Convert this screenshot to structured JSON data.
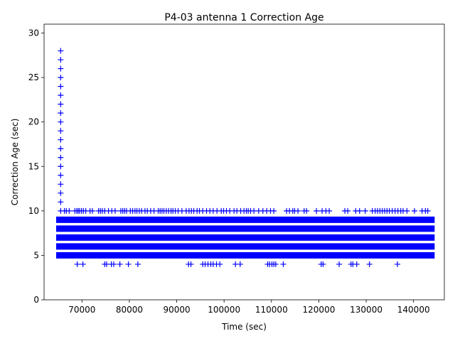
{
  "chart_data": {
    "type": "scatter",
    "title": "P4-03 antenna 1 Correction Age",
    "xlabel": "Time (sec)",
    "ylabel": "Correction Age (sec)",
    "xlim": [
      62000,
      146500
    ],
    "ylim": [
      0,
      31
    ],
    "x_ticks": [
      70000,
      80000,
      90000,
      100000,
      110000,
      120000,
      130000,
      140000
    ],
    "x_tick_labels": [
      "70000",
      "80000",
      "90000",
      "100000",
      "110000",
      "120000",
      "130000",
      "140000"
    ],
    "y_ticks": [
      0,
      5,
      10,
      15,
      20,
      25,
      30
    ],
    "y_tick_labels": [
      "0",
      "5",
      "10",
      "15",
      "20",
      "25",
      "30"
    ],
    "marker": "+",
    "color": "#0000ff",
    "grid": false,
    "dense_bands": {
      "x_range": [
        65000,
        144000
      ],
      "y_values": [
        5,
        6,
        7,
        8,
        9
      ]
    },
    "spike": {
      "x": 65500,
      "y_values": [
        11,
        12,
        13,
        14,
        15,
        16,
        17,
        18,
        19,
        20,
        21,
        22,
        23,
        24,
        25,
        26,
        27,
        28
      ]
    },
    "sparse_points_y10": [
      65500,
      66300,
      66700,
      67300,
      68500,
      68900,
      69200,
      69500,
      69900,
      70300,
      70800,
      71700,
      72200,
      73500,
      73900,
      74300,
      74800,
      75600,
      76300,
      77000,
      78200,
      78600,
      79000,
      79400,
      80200,
      80700,
      81200,
      81600,
      82100,
      82600,
      83300,
      83800,
      84500,
      85200,
      86100,
      86500,
      86900,
      87300,
      87800,
      88300,
      88800,
      89200,
      89700,
      90300,
      91100,
      92000,
      92600,
      93100,
      93600,
      94300,
      94800,
      95500,
      96300,
      97000,
      97700,
      98500,
      99400,
      99900,
      100500,
      101200,
      102100,
      102700,
      103500,
      104200,
      104700,
      105100,
      105600,
      106300,
      107300,
      108200,
      109000,
      109800,
      110500,
      113200,
      113800,
      114500,
      114900,
      115600,
      116900,
      117400,
      119500,
      120700,
      121500,
      122200,
      125500,
      126100,
      127800,
      128600,
      129800,
      131300,
      131900,
      132400,
      132900,
      133400,
      133900,
      134400,
      134900,
      135500,
      136100,
      136700,
      137300,
      137800,
      138600,
      140200,
      141800,
      142500,
      143000
    ],
    "sparse_points_y4": [
      69000,
      70200,
      74800,
      75200,
      76200,
      76700,
      78000,
      79800,
      81800,
      92500,
      93000,
      95500,
      96000,
      96600,
      97200,
      97700,
      98400,
      99100,
      102400,
      103400,
      109200,
      109600,
      110100,
      110500,
      110900,
      112500,
      120500,
      120900,
      124300,
      126800,
      127200,
      128000,
      130700,
      136600
    ]
  }
}
